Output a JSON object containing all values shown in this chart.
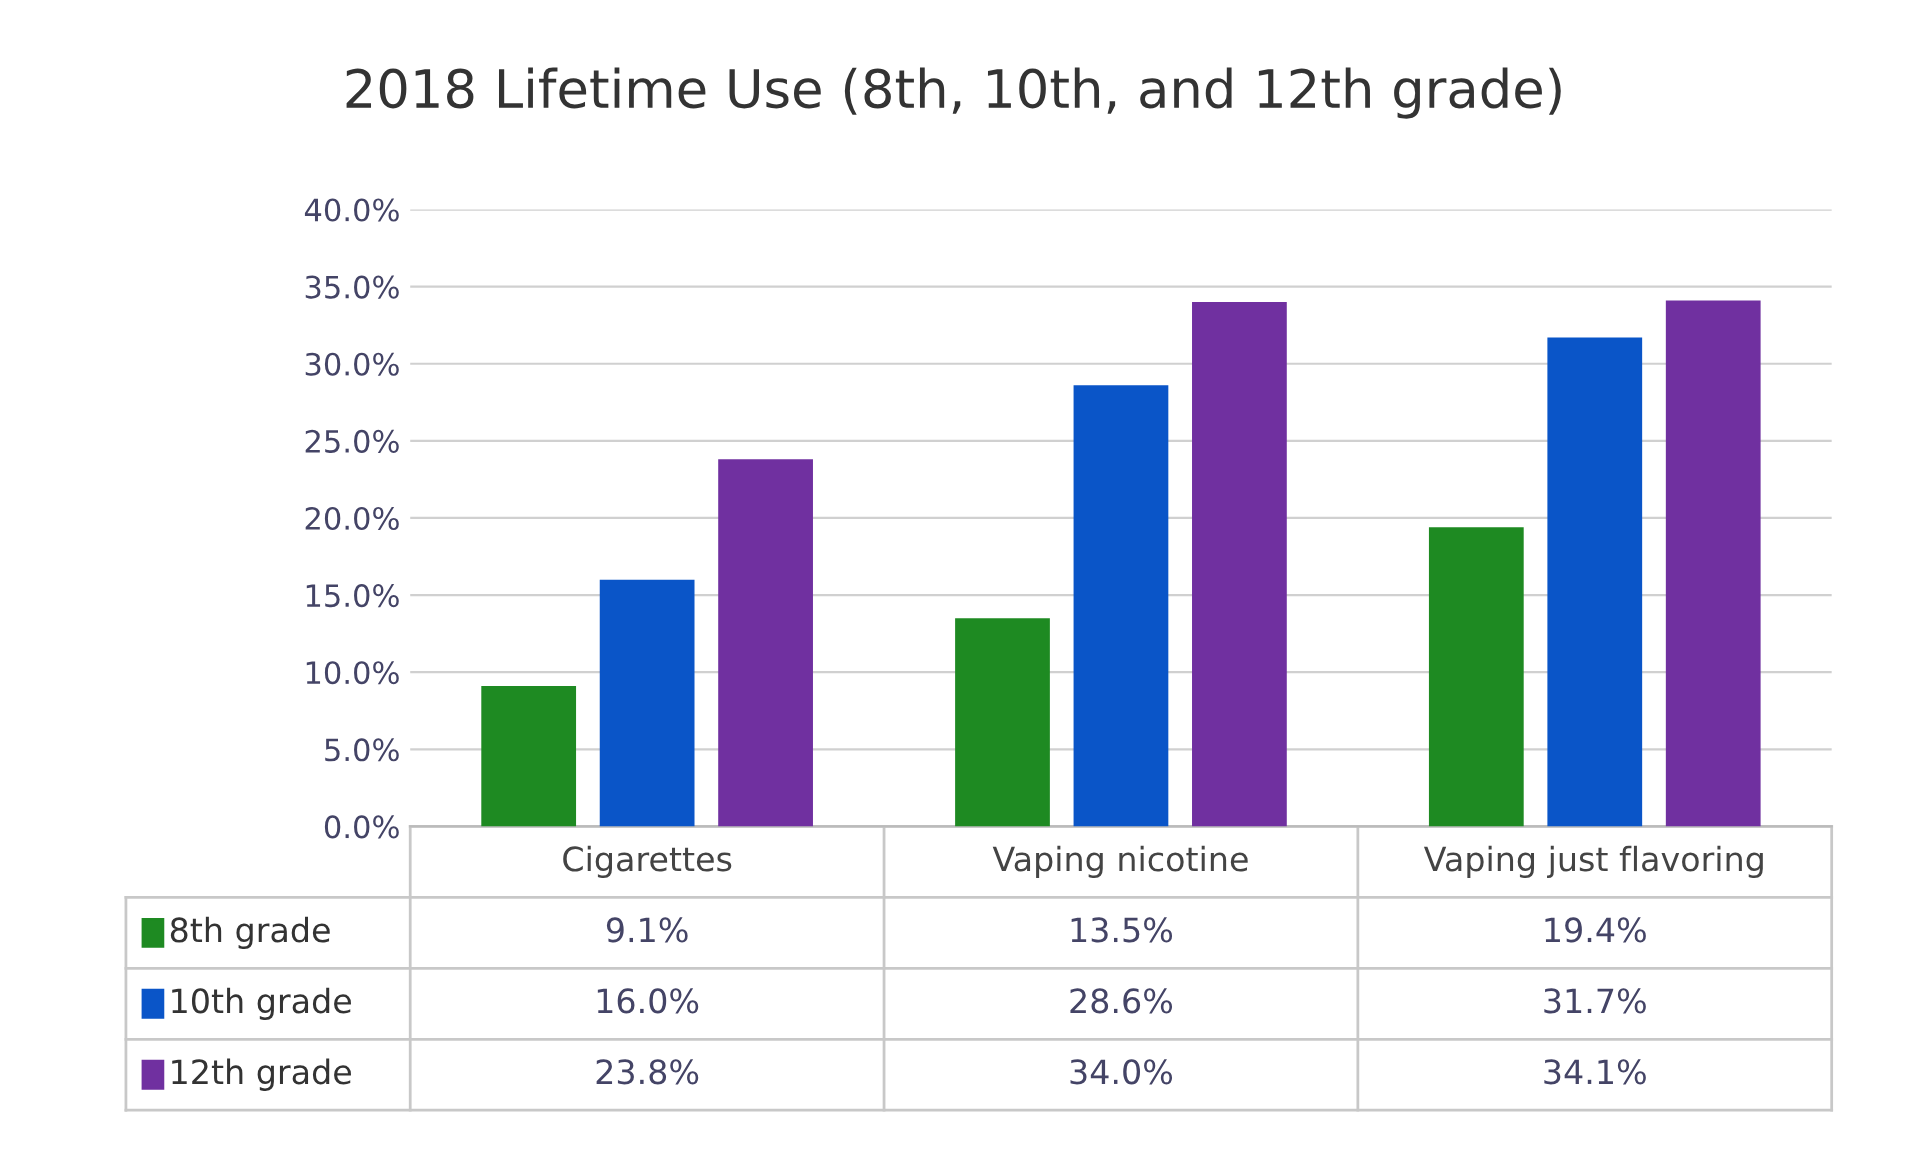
{
  "chart_data": {
    "type": "bar",
    "title": "2018 Lifetime Use (8th, 10th, and 12th grade)",
    "categories": [
      "Cigarettes",
      "Vaping nicotine",
      "Vaping just flavoring"
    ],
    "series": [
      {
        "name": "8th grade",
        "color": "#1e8a22",
        "values": [
          9.1,
          13.5,
          19.4
        ],
        "value_labels": [
          "9.1%",
          "13.5%",
          "19.4%"
        ]
      },
      {
        "name": "10th grade",
        "color": "#0a55c8",
        "values": [
          16.0,
          28.6,
          31.7
        ],
        "value_labels": [
          "16.0%",
          "28.6%",
          "31.7%"
        ]
      },
      {
        "name": "12th grade",
        "color": "#7030a0",
        "values": [
          23.8,
          34.0,
          34.1
        ],
        "value_labels": [
          "23.8%",
          "34.0%",
          "34.1%"
        ]
      }
    ],
    "ylim": [
      0,
      40
    ],
    "yticks": [
      {
        "value": 0,
        "label": "0.0%"
      },
      {
        "value": 5,
        "label": "5.0%"
      },
      {
        "value": 10,
        "label": "10.0%"
      },
      {
        "value": 15,
        "label": "15.0%"
      },
      {
        "value": 20,
        "label": "20.0%"
      },
      {
        "value": 25,
        "label": "25.0%"
      },
      {
        "value": 30,
        "label": "30.0%"
      },
      {
        "value": 35,
        "label": "35.0%"
      },
      {
        "value": 40,
        "label": "40.0%"
      }
    ],
    "grid": "y",
    "legend": "bottom"
  }
}
